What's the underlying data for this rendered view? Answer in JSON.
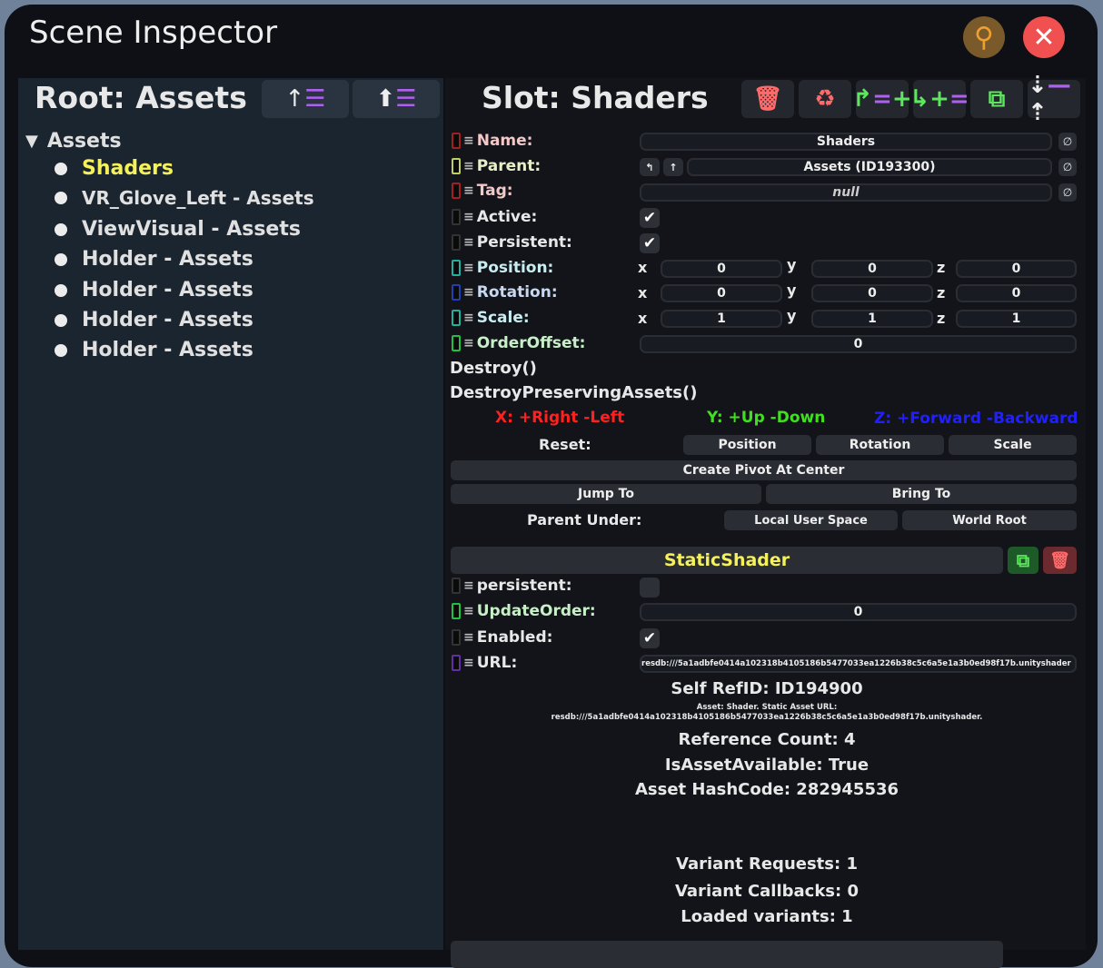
{
  "window": {
    "title": "Scene Inspector"
  },
  "left": {
    "header": "Root: Assets",
    "tree_root": "Assets",
    "items": [
      "Shaders",
      "VR_Glove_Left - Assets",
      "ViewVisual - Assets",
      "Holder - Assets",
      "Holder - Assets",
      "Holder - Assets",
      "Holder - Assets"
    ],
    "selected": "Shaders"
  },
  "slot": {
    "header": "Slot: Shaders",
    "fields": {
      "name_label": "Name:",
      "name": "Shaders",
      "parent_label": "Parent:",
      "parent": "Assets (ID193300)",
      "tag_label": "Tag:",
      "tag": "null",
      "active_label": "Active:",
      "persistent_label": "Persistent:",
      "position_label": "Position:",
      "rotation_label": "Rotation:",
      "scale_label": "Scale:",
      "orderoffset_label": "OrderOffset:",
      "orderoffset": "0"
    },
    "position": {
      "x": "0",
      "y": "0",
      "z": "0"
    },
    "rotation": {
      "x": "0",
      "y": "0",
      "z": "0"
    },
    "scale": {
      "x": "1",
      "y": "1",
      "z": "1"
    },
    "axes": {
      "x": "x",
      "y": "y",
      "z": "z"
    },
    "destroy": "Destroy()",
    "destroy_preserving": "DestroyPreservingAssets()",
    "legend": {
      "x": "X: +Right -Left",
      "y": "Y: +Up -Down",
      "z": "Z: +Forward -Backward"
    },
    "reset_label": "Reset:",
    "reset_position": "Position",
    "reset_rotation": "Rotation",
    "reset_scale": "Scale",
    "create_pivot": "Create Pivot At Center",
    "jump_to": "Jump To",
    "bring_to": "Bring To",
    "parent_under": "Parent Under:",
    "local_user_space": "Local User Space",
    "world_root": "World Root"
  },
  "component": {
    "name": "StaticShader",
    "persistent_label": "persistent:",
    "update_order_label": "UpdateOrder:",
    "update_order": "0",
    "enabled_label": "Enabled:",
    "url_label": "URL:",
    "url": "resdb:///5a1adbfe0414a102318b4105186b5477033ea1226b38c5c6a5e1a3b0ed98f17b.unityshader",
    "self_ref": "Self RefID: ID194900",
    "asset_info_1": "Asset: Shader. Static Asset URL:",
    "asset_info_2": "resdb:///5a1adbfe0414a102318b4105186b5477033ea1226b38c5c6a5e1a3b0ed98f17b.unityshader.",
    "ref_count": "Reference Count: 4",
    "is_available": "IsAssetAvailable: True",
    "hash": "Asset HashCode: 282945536",
    "variant_requests": "Variant Requests: 1",
    "variant_callbacks": "Variant Callbacks: 0",
    "loaded_variants": "Loaded variants: 1"
  },
  "colors": {
    "selected": "#f4f15a",
    "red": "#ff6b6b",
    "green": "#5ee65e",
    "purple": "#b060f0",
    "axis_x": "#ff2020",
    "axis_y": "#40e020",
    "axis_z": "#2020ff"
  }
}
